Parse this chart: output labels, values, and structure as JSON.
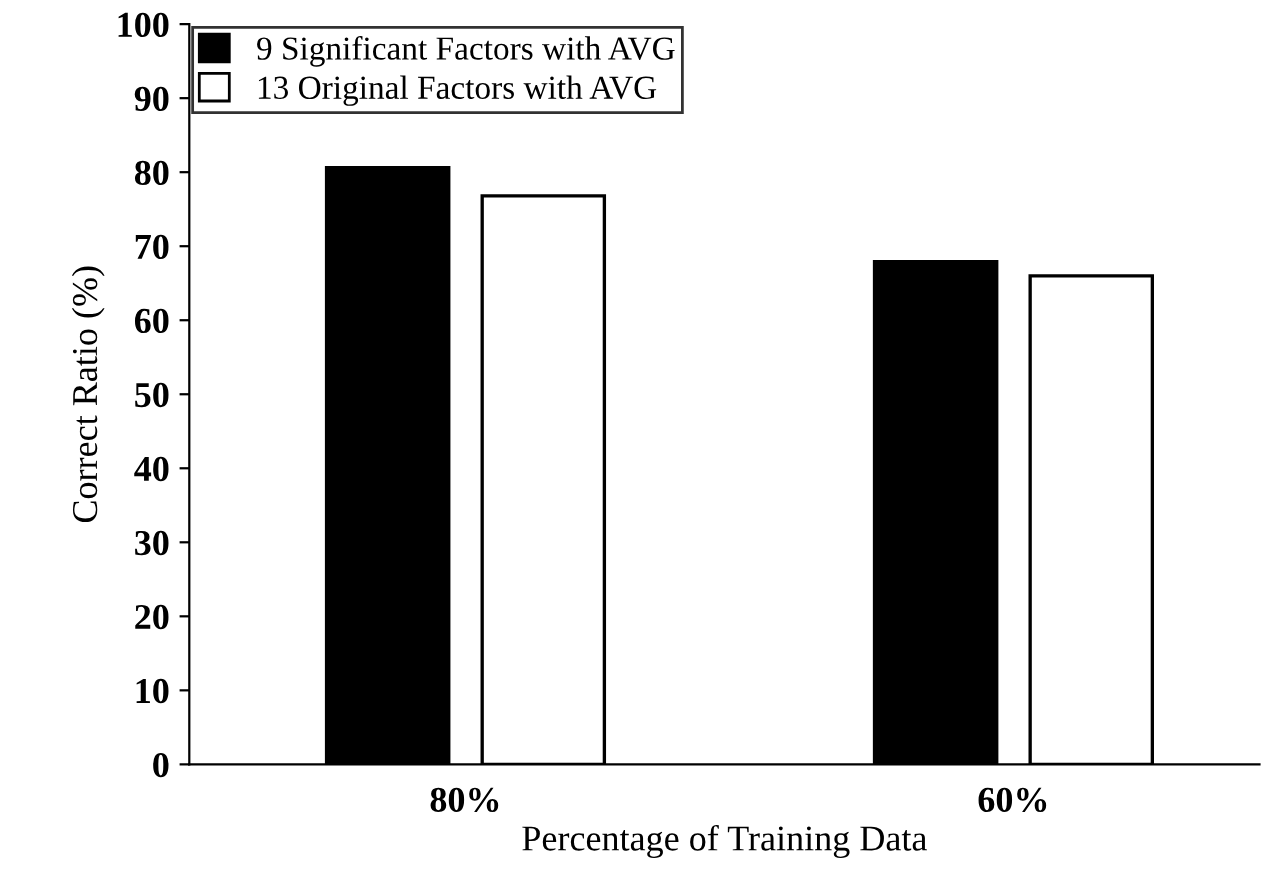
{
  "chart_data": {
    "type": "bar",
    "xlabel": "Percentage of Training Data",
    "ylabel": "Correct Ratio (%)",
    "categories": [
      "80%",
      "60%"
    ],
    "series": [
      {
        "name": "9 Significant Factors with AVG",
        "color": "#000000",
        "values": [
          80.6,
          67.9
        ]
      },
      {
        "name": "13 Original Factors with AVG",
        "color": "#ffffff",
        "values": [
          76.8,
          66.0
        ]
      }
    ],
    "ylim": [
      0,
      100
    ],
    "yticks": [
      0,
      10,
      20,
      30,
      40,
      50,
      60,
      70,
      80,
      90,
      100
    ],
    "grid": false,
    "legend": "top left"
  }
}
